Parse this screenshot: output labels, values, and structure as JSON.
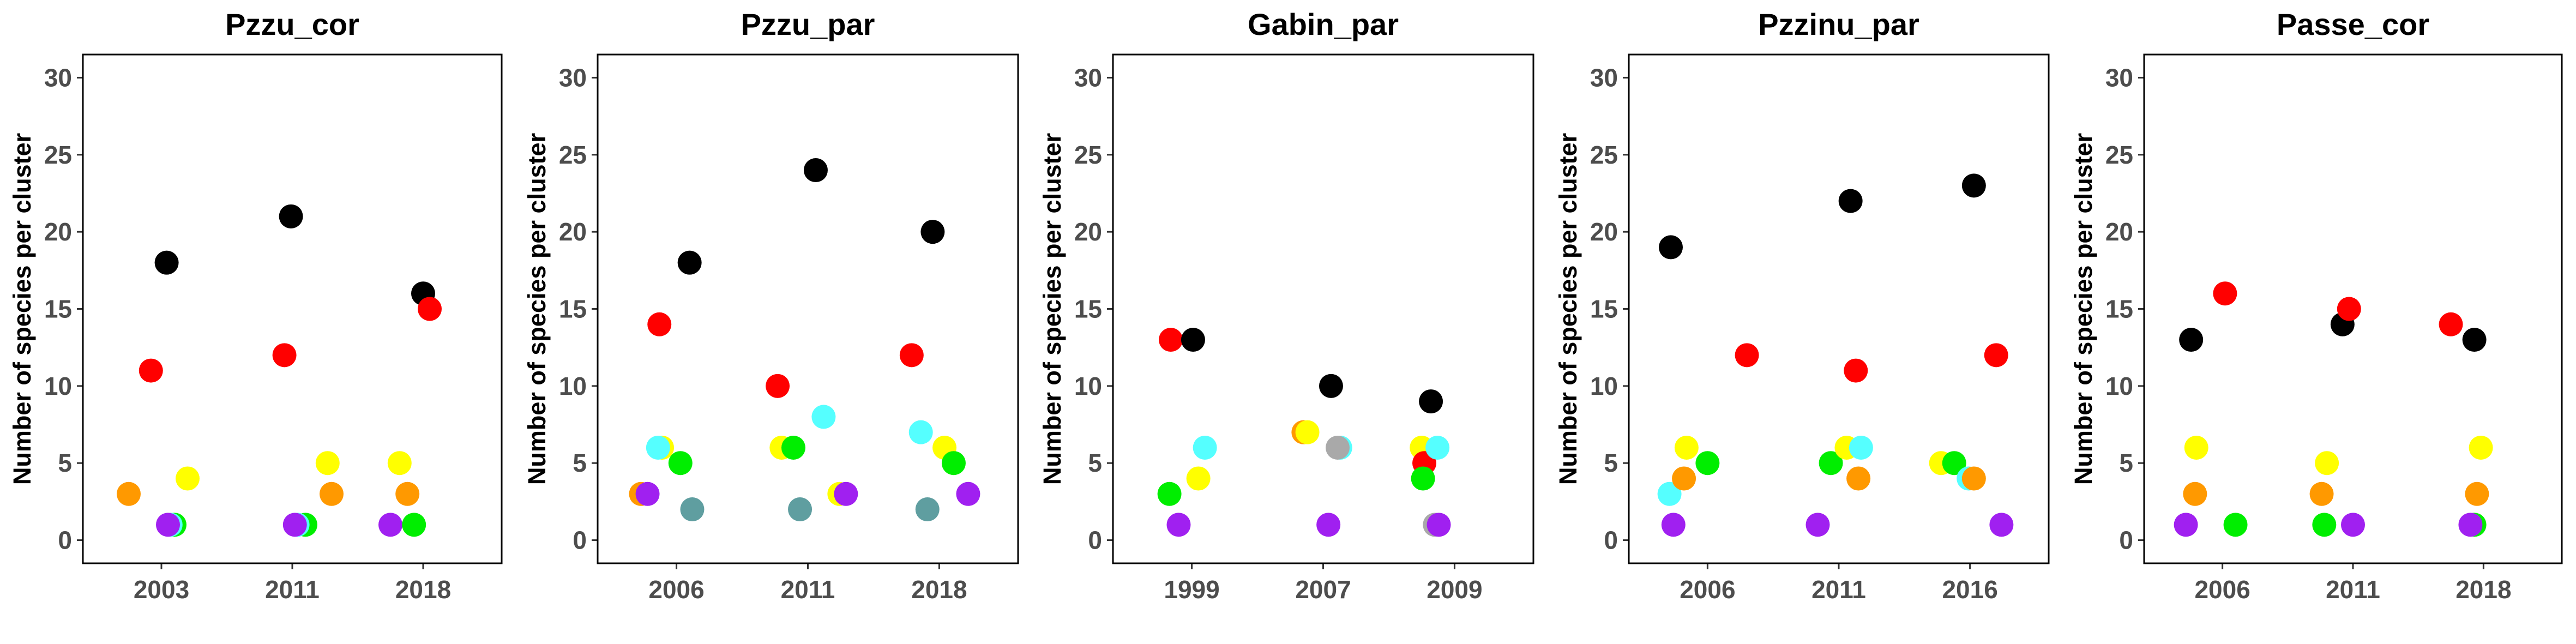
{
  "chart_data": [
    {
      "type": "scatter",
      "title": "Pzzu_cor",
      "ylabel": "Number of species per cluster",
      "categories": [
        "2003",
        "2011",
        "2018"
      ],
      "ylim": [
        -1.5,
        31.5
      ],
      "yticks": [
        0,
        5,
        10,
        15,
        20,
        25,
        30
      ],
      "points": [
        {
          "x": 0.75,
          "y": 3,
          "color": "#FF9900"
        },
        {
          "x": 0.92,
          "y": 11,
          "color": "#FF0000"
        },
        {
          "x": 1.04,
          "y": 18,
          "color": "#000000"
        },
        {
          "x": 1.1,
          "y": 1,
          "color": "#00EE00"
        },
        {
          "x": 1.07,
          "y": 1,
          "color": "#55FFFF"
        },
        {
          "x": 1.05,
          "y": 1,
          "color": "#A020F0"
        },
        {
          "x": 1.2,
          "y": 4,
          "color": "#FFFF00"
        },
        {
          "x": 1.94,
          "y": 12,
          "color": "#FF0000"
        },
        {
          "x": 1.99,
          "y": 21,
          "color": "#000000"
        },
        {
          "x": 2.1,
          "y": 1,
          "color": "#00EE00"
        },
        {
          "x": 2.04,
          "y": 1,
          "color": "#55FFFF"
        },
        {
          "x": 2.02,
          "y": 1,
          "color": "#A020F0"
        },
        {
          "x": 2.27,
          "y": 5,
          "color": "#FFFF00"
        },
        {
          "x": 2.3,
          "y": 3,
          "color": "#FF9900"
        },
        {
          "x": 2.75,
          "y": 1,
          "color": "#A020F0"
        },
        {
          "x": 2.82,
          "y": 5,
          "color": "#FFFF00"
        },
        {
          "x": 2.88,
          "y": 3,
          "color": "#FF9900"
        },
        {
          "x": 2.93,
          "y": 1,
          "color": "#00EE00"
        },
        {
          "x": 3.0,
          "y": 16,
          "color": "#000000"
        },
        {
          "x": 3.05,
          "y": 15,
          "color": "#FF0000"
        }
      ]
    },
    {
      "type": "scatter",
      "title": "Pzzu_par",
      "ylabel": "Number of species per cluster",
      "categories": [
        "2006",
        "2011",
        "2018"
      ],
      "ylim": [
        -1.5,
        31.5
      ],
      "yticks": [
        0,
        5,
        10,
        15,
        20,
        25,
        30
      ],
      "points": [
        {
          "x": 0.73,
          "y": 3,
          "color": "#FF9900"
        },
        {
          "x": 0.78,
          "y": 3,
          "color": "#A020F0"
        },
        {
          "x": 0.87,
          "y": 14,
          "color": "#FF0000"
        },
        {
          "x": 0.89,
          "y": 6,
          "color": "#FFFF00"
        },
        {
          "x": 0.86,
          "y": 6,
          "color": "#55FFFF"
        },
        {
          "x": 1.03,
          "y": 5,
          "color": "#00EE00"
        },
        {
          "x": 1.12,
          "y": 2,
          "color": "#5F9EA0"
        },
        {
          "x": 1.1,
          "y": 18,
          "color": "#000000"
        },
        {
          "x": 1.77,
          "y": 10,
          "color": "#FF0000"
        },
        {
          "x": 1.8,
          "y": 6,
          "color": "#FFFF00"
        },
        {
          "x": 1.89,
          "y": 6,
          "color": "#00EE00"
        },
        {
          "x": 1.94,
          "y": 2,
          "color": "#5F9EA0"
        },
        {
          "x": 2.06,
          "y": 24,
          "color": "#000000"
        },
        {
          "x": 2.12,
          "y": 8,
          "color": "#55FFFF"
        },
        {
          "x": 2.24,
          "y": 3,
          "color": "#FFFF00"
        },
        {
          "x": 2.29,
          "y": 3,
          "color": "#A020F0"
        },
        {
          "x": 2.79,
          "y": 12,
          "color": "#FF0000"
        },
        {
          "x": 2.86,
          "y": 7,
          "color": "#55FFFF"
        },
        {
          "x": 2.91,
          "y": 2,
          "color": "#5F9EA0"
        },
        {
          "x": 2.95,
          "y": 20,
          "color": "#000000"
        },
        {
          "x": 3.04,
          "y": 6,
          "color": "#FFFF00"
        },
        {
          "x": 3.11,
          "y": 5,
          "color": "#00EE00"
        },
        {
          "x": 3.22,
          "y": 3,
          "color": "#A020F0"
        }
      ]
    },
    {
      "type": "scatter",
      "title": "Gabin_par",
      "ylabel": "Number of species per cluster",
      "categories": [
        "1999",
        "2007",
        "2009"
      ],
      "ylim": [
        -1.5,
        31.5
      ],
      "yticks": [
        0,
        5,
        10,
        15,
        20,
        25,
        30
      ],
      "points": [
        {
          "x": 0.83,
          "y": 3,
          "color": "#00EE00"
        },
        {
          "x": 0.84,
          "y": 13,
          "color": "#FF0000"
        },
        {
          "x": 0.9,
          "y": 1,
          "color": "#A020F0"
        },
        {
          "x": 1.05,
          "y": 4,
          "color": "#FFFF00"
        },
        {
          "x": 1.1,
          "y": 6,
          "color": "#55FFFF"
        },
        {
          "x": 1.01,
          "y": 13,
          "color": "#000000"
        },
        {
          "x": 1.85,
          "y": 7,
          "color": "#FF9900"
        },
        {
          "x": 1.88,
          "y": 7,
          "color": "#FFFF00"
        },
        {
          "x": 2.04,
          "y": 1,
          "color": "#A020F0"
        },
        {
          "x": 2.06,
          "y": 10,
          "color": "#000000"
        },
        {
          "x": 2.13,
          "y": 6,
          "color": "#55FFFF"
        },
        {
          "x": 2.11,
          "y": 6,
          "color": "#A9A9A9"
        },
        {
          "x": 2.75,
          "y": 6,
          "color": "#FFFF00"
        },
        {
          "x": 2.77,
          "y": 5,
          "color": "#FF0000"
        },
        {
          "x": 2.76,
          "y": 4,
          "color": "#00EE00"
        },
        {
          "x": 2.85,
          "y": 1,
          "color": "#A9A9A9"
        },
        {
          "x": 2.88,
          "y": 1,
          "color": "#A020F0"
        },
        {
          "x": 2.82,
          "y": 9,
          "color": "#000000"
        },
        {
          "x": 2.87,
          "y": 6,
          "color": "#55FFFF"
        }
      ]
    },
    {
      "type": "scatter",
      "title": "Pzzinu_par",
      "ylabel": "Number of species per cluster",
      "categories": [
        "2006",
        "2011",
        "2016"
      ],
      "ylim": [
        -1.5,
        31.5
      ],
      "yticks": [
        0,
        5,
        10,
        15,
        20,
        25,
        30
      ],
      "points": [
        {
          "x": 0.71,
          "y": 3,
          "color": "#55FFFF"
        },
        {
          "x": 0.72,
          "y": 19,
          "color": "#000000"
        },
        {
          "x": 0.74,
          "y": 1,
          "color": "#A020F0"
        },
        {
          "x": 0.82,
          "y": 4,
          "color": "#FF9900"
        },
        {
          "x": 0.84,
          "y": 6,
          "color": "#FFFF00"
        },
        {
          "x": 1.0,
          "y": 5,
          "color": "#00EE00"
        },
        {
          "x": 1.3,
          "y": 12,
          "color": "#FF0000"
        },
        {
          "x": 1.84,
          "y": 1,
          "color": "#A020F0"
        },
        {
          "x": 1.94,
          "y": 5,
          "color": "#00EE00"
        },
        {
          "x": 2.06,
          "y": 6,
          "color": "#FFFF00"
        },
        {
          "x": 2.09,
          "y": 22,
          "color": "#000000"
        },
        {
          "x": 2.13,
          "y": 11,
          "color": "#FF0000"
        },
        {
          "x": 2.15,
          "y": 4,
          "color": "#FF9900"
        },
        {
          "x": 2.17,
          "y": 6,
          "color": "#55FFFF"
        },
        {
          "x": 2.78,
          "y": 5,
          "color": "#FFFF00"
        },
        {
          "x": 2.88,
          "y": 5,
          "color": "#00EE00"
        },
        {
          "x": 2.99,
          "y": 4,
          "color": "#55FFFF"
        },
        {
          "x": 3.03,
          "y": 4,
          "color": "#FF9900"
        },
        {
          "x": 3.03,
          "y": 23,
          "color": "#000000"
        },
        {
          "x": 3.2,
          "y": 12,
          "color": "#FF0000"
        },
        {
          "x": 3.24,
          "y": 1,
          "color": "#A020F0"
        }
      ]
    },
    {
      "type": "scatter",
      "title": "Passe_cor",
      "ylabel": "Number of species per cluster",
      "categories": [
        "2006",
        "2011",
        "2018"
      ],
      "ylim": [
        -1.5,
        31.5
      ],
      "yticks": [
        0,
        5,
        10,
        15,
        20,
        25,
        30
      ],
      "points": [
        {
          "x": 0.72,
          "y": 1,
          "color": "#A020F0"
        },
        {
          "x": 0.76,
          "y": 13,
          "color": "#000000"
        },
        {
          "x": 0.79,
          "y": 3,
          "color": "#FF9900"
        },
        {
          "x": 0.8,
          "y": 6,
          "color": "#FFFF00"
        },
        {
          "x": 1.02,
          "y": 16,
          "color": "#FF0000"
        },
        {
          "x": 1.1,
          "y": 1,
          "color": "#00EE00"
        },
        {
          "x": 1.76,
          "y": 3,
          "color": "#FF9900"
        },
        {
          "x": 1.78,
          "y": 1,
          "color": "#00EE00"
        },
        {
          "x": 1.8,
          "y": 5,
          "color": "#FFFF00"
        },
        {
          "x": 1.92,
          "y": 14,
          "color": "#000000"
        },
        {
          "x": 1.97,
          "y": 15,
          "color": "#FF0000"
        },
        {
          "x": 2.0,
          "y": 1,
          "color": "#A020F0"
        },
        {
          "x": 2.75,
          "y": 14,
          "color": "#FF0000"
        },
        {
          "x": 2.93,
          "y": 1,
          "color": "#00EE00"
        },
        {
          "x": 2.9,
          "y": 1,
          "color": "#A020F0"
        },
        {
          "x": 2.93,
          "y": 13,
          "color": "#000000"
        },
        {
          "x": 2.95,
          "y": 3,
          "color": "#FF9900"
        },
        {
          "x": 2.98,
          "y": 6,
          "color": "#FFFF00"
        }
      ]
    }
  ]
}
